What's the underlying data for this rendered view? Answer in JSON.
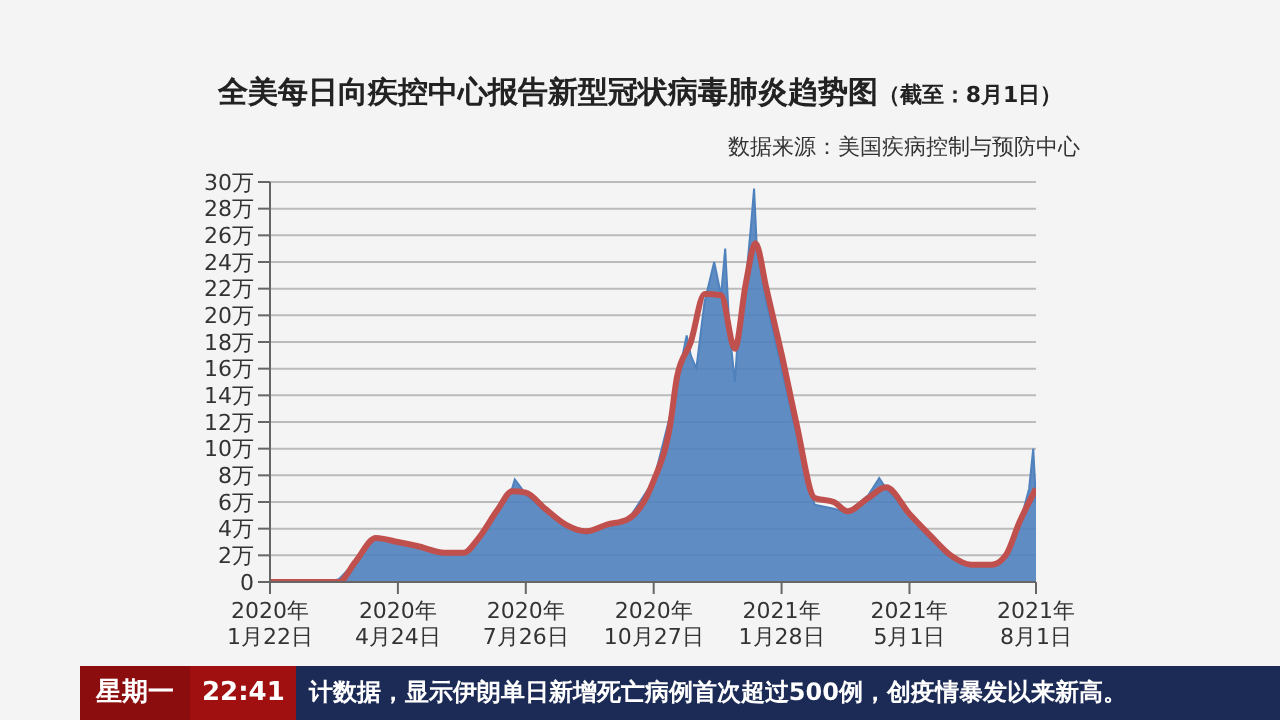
{
  "chart_data": {
    "type": "area",
    "title": "全美每日向疾控中心报告新型冠状病毒肺炎趋势图",
    "subtitle": "（截至：8月1日）",
    "annotations": [
      "数据来源：美国疾病控制与预防中心",
      "星期一",
      "22:41",
      "计数据，显示伊朗单日新增死亡病例首次超过500例，创疫情暴发以来新高。"
    ],
    "xlim": [
      "2020-01-22",
      "2021-08-01"
    ],
    "xticks": [
      {
        "value": "2020-01-22",
        "label": "2020年\n1月22日"
      },
      {
        "value": "2020-04-24",
        "label": "2020年\n4月24日"
      },
      {
        "value": "2020-07-26",
        "label": "2020年\n7月26日"
      },
      {
        "value": "2020-10-27",
        "label": "2020年\n10月27日"
      },
      {
        "value": "2021-01-28",
        "label": "2021年\n1月28日"
      },
      {
        "value": "2021-05-01",
        "label": "2021年\n5月1日"
      },
      {
        "value": "2021-08-01",
        "label": "2021年\n8月1日"
      }
    ],
    "ylim": [
      0,
      30
    ],
    "yticks": [
      0,
      {
        "value": 2,
        "label": "2万"
      },
      {
        "value": 4,
        "label": "4万"
      },
      {
        "value": 6,
        "label": "6万"
      },
      {
        "value": 8,
        "label": "8万"
      },
      {
        "value": 10,
        "label": "10万"
      },
      {
        "value": 12,
        "label": "12万"
      },
      {
        "value": 14,
        "label": "14万"
      },
      {
        "value": 16,
        "label": "16万"
      },
      {
        "value": 18,
        "label": "18万"
      },
      {
        "value": 20,
        "label": "20万"
      },
      {
        "value": 22,
        "label": "22万"
      },
      {
        "value": 24,
        "label": "24万"
      },
      {
        "value": 26,
        "label": "26万"
      },
      {
        "value": 28,
        "label": "28万"
      },
      {
        "value": 30,
        "label": "30万"
      }
    ],
    "grid": "y",
    "series": [
      {
        "color": "#4f81bd",
        "x": [
          "2020-01-22",
          "2020-03-05",
          "2020-03-12",
          "2020-03-24",
          "2020-04-04",
          "2020-04-10",
          "2020-04-24",
          "2020-05-08",
          "2020-05-28",
          "2020-06-11",
          "2020-06-21",
          "2020-07-06",
          "2020-07-16",
          "2020-07-18",
          "2020-07-26",
          "2020-08-09",
          "2020-08-24",
          "2020-09-08",
          "2020-09-23",
          "2020-10-08",
          "2020-10-27",
          "2020-11-08",
          "2020-11-13",
          "2020-11-20",
          "2020-11-23",
          "2020-11-27",
          "2020-12-03",
          "2020-12-10",
          "2020-12-15",
          "2020-12-18",
          "2020-12-21",
          "2020-12-25",
          "2020-12-27",
          "2021-01-02",
          "2021-01-06",
          "2021-01-08",
          "2021-01-10",
          "2021-01-17",
          "2021-01-28",
          "2021-02-08",
          "2021-02-21",
          "2021-03-07",
          "2021-03-17",
          "2021-04-01",
          "2021-04-09",
          "2021-04-14",
          "2021-05-01",
          "2021-05-16",
          "2021-05-31",
          "2021-06-15",
          "2021-06-30",
          "2021-07-10",
          "2021-07-20",
          "2021-07-27",
          "2021-07-30",
          "2021-08-01"
        ],
        "values": [
          0,
          0,
          0.2,
          1.5,
          3.2,
          3.4,
          3.0,
          2.7,
          2.1,
          2.1,
          3.1,
          5.5,
          7.0,
          7.7,
          6.6,
          5.3,
          4.2,
          3.6,
          4.2,
          4.6,
          7.6,
          12.5,
          15.0,
          18.5,
          17.0,
          16.0,
          21.0,
          24.0,
          21.5,
          25.0,
          19.0,
          15.0,
          18.0,
          22.5,
          27.0,
          29.5,
          25.0,
          21.0,
          16.0,
          11.0,
          5.8,
          5.5,
          5.2,
          6.5,
          7.8,
          7.0,
          5.2,
          3.3,
          1.9,
          1.2,
          1.2,
          1.9,
          4.3,
          7.0,
          10.0,
          6.0
        ]
      },
      {
        "type": "line",
        "color": "#c0504d",
        "x": [
          "2020-01-22",
          "2020-03-12",
          "2020-03-24",
          "2020-04-08",
          "2020-04-24",
          "2020-05-08",
          "2020-05-28",
          "2020-06-11",
          "2020-06-21",
          "2020-07-06",
          "2020-07-16",
          "2020-07-26",
          "2020-08-09",
          "2020-08-24",
          "2020-09-08",
          "2020-09-23",
          "2020-10-08",
          "2020-10-27",
          "2020-11-08",
          "2020-11-13",
          "2020-11-23",
          "2020-12-03",
          "2020-12-15",
          "2020-12-25",
          "2021-01-02",
          "2021-01-09",
          "2021-01-17",
          "2021-01-28",
          "2021-02-08",
          "2021-02-21",
          "2021-03-07",
          "2021-03-17",
          "2021-04-01",
          "2021-04-14",
          "2021-05-01",
          "2021-05-16",
          "2021-05-31",
          "2021-06-15",
          "2021-06-30",
          "2021-07-10",
          "2021-07-20",
          "2021-08-01"
        ],
        "values": [
          0,
          0,
          1.5,
          3.3,
          3.0,
          2.7,
          2.2,
          2.2,
          3.2,
          5.5,
          6.8,
          6.7,
          5.5,
          4.3,
          3.8,
          4.3,
          4.7,
          7.6,
          11.8,
          15.4,
          18.0,
          21.6,
          21.5,
          17.5,
          22.4,
          25.4,
          22.0,
          17.1,
          11.8,
          6.3,
          6.0,
          5.3,
          6.3,
          7.1,
          5.1,
          3.5,
          2.0,
          1.3,
          1.3,
          2.0,
          4.5,
          7.0
        ]
      }
    ]
  }
}
